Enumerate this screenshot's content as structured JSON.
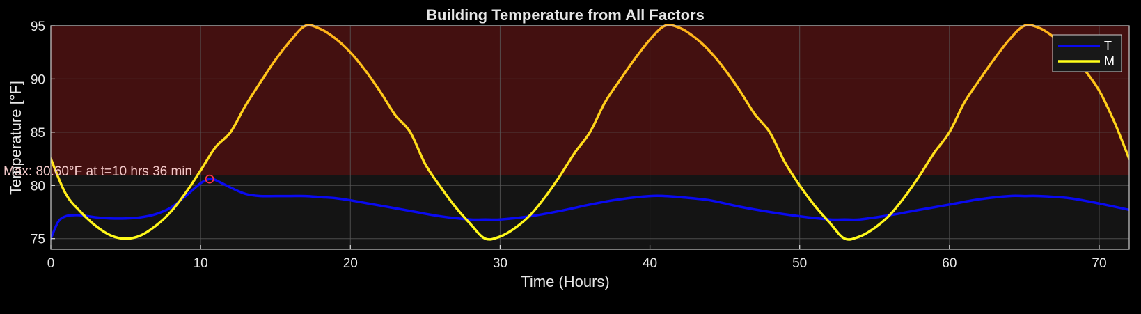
{
  "chart_data": {
    "type": "line",
    "title": "Building Temperature from All Factors",
    "xlabel": "Time (Hours)",
    "ylabel": "Temperature [°F]",
    "xlim": [
      0,
      72
    ],
    "ylim": [
      74,
      95
    ],
    "xticks": [
      0,
      10,
      20,
      30,
      40,
      50,
      60,
      70
    ],
    "yticks": [
      75,
      80,
      85,
      90,
      95
    ],
    "grid": true,
    "legend_position": "top-right",
    "shaded_region": {
      "y_from": 81,
      "y_to": 95,
      "color": "#431010"
    },
    "plot_background": "#141414",
    "series": [
      {
        "name": "T",
        "color": "#0a0af0",
        "x": [
          0,
          0.5,
          1,
          1.5,
          2,
          3,
          4,
          5,
          6,
          7,
          8,
          9,
          10,
          10.6,
          11,
          12,
          13,
          14,
          15,
          16,
          17,
          18,
          19,
          20,
          22,
          24,
          26,
          28,
          29,
          30,
          32,
          34,
          36,
          38,
          40,
          41,
          42,
          44,
          46,
          48,
          50,
          52,
          53,
          54,
          56,
          58,
          60,
          62,
          64,
          65,
          66,
          68,
          70,
          72
        ],
        "y": [
          75.0,
          76.6,
          77.1,
          77.2,
          77.2,
          77.0,
          76.9,
          76.9,
          77.0,
          77.3,
          77.9,
          79.0,
          80.2,
          80.6,
          80.5,
          79.8,
          79.2,
          79.0,
          79.0,
          79.0,
          79.0,
          78.9,
          78.8,
          78.6,
          78.1,
          77.6,
          77.1,
          76.8,
          76.8,
          76.8,
          77.1,
          77.6,
          78.2,
          78.7,
          79.0,
          79.0,
          78.9,
          78.6,
          78.0,
          77.5,
          77.1,
          76.8,
          76.8,
          76.8,
          77.2,
          77.7,
          78.2,
          78.7,
          79.0,
          79.0,
          79.0,
          78.8,
          78.3,
          77.7
        ]
      },
      {
        "name": "M",
        "color": "#ffff1a",
        "x": [
          0,
          1,
          2,
          3,
          4,
          5,
          6,
          7,
          8,
          9,
          10,
          11,
          12,
          13,
          14,
          15,
          16,
          17,
          18,
          19,
          20,
          21,
          22,
          23,
          24,
          25,
          26,
          27,
          28,
          29,
          30,
          31,
          32,
          33,
          34,
          35,
          36,
          37,
          38,
          39,
          40,
          41,
          42,
          43,
          44,
          45,
          46,
          47,
          48,
          49,
          50,
          51,
          52,
          53,
          54,
          55,
          56,
          57,
          58,
          59,
          60,
          61,
          62,
          63,
          64,
          65,
          66,
          67,
          68,
          69,
          70,
          71,
          72
        ],
        "y": [
          82.5,
          79.2,
          77.5,
          76.2,
          75.3,
          75.0,
          75.3,
          76.2,
          77.5,
          79.3,
          81.4,
          83.6,
          85.0,
          87.5,
          89.7,
          91.8,
          93.6,
          95.0,
          94.7,
          93.8,
          92.5,
          90.8,
          88.8,
          86.6,
          85.0,
          82.0,
          79.9,
          78.0,
          76.4,
          75.0,
          75.2,
          76.0,
          77.2,
          78.9,
          80.9,
          83.1,
          85.0,
          87.8,
          89.9,
          91.9,
          93.7,
          95.0,
          94.8,
          93.9,
          92.6,
          90.9,
          88.9,
          86.7,
          85.0,
          82.2,
          80.0,
          78.1,
          76.5,
          75.0,
          75.2,
          76.0,
          77.2,
          78.9,
          80.9,
          83.1,
          85.0,
          87.8,
          89.9,
          91.9,
          93.7,
          95.0,
          94.8,
          93.9,
          92.6,
          90.9,
          88.9,
          86.0,
          82.5
        ]
      }
    ],
    "annotations": [
      {
        "text": "Max: 80.60°F at t=10 hrs 36 min",
        "x": 10.6,
        "y": 80.6,
        "marker": "circle",
        "marker_color": "#ff3344"
      }
    ]
  }
}
